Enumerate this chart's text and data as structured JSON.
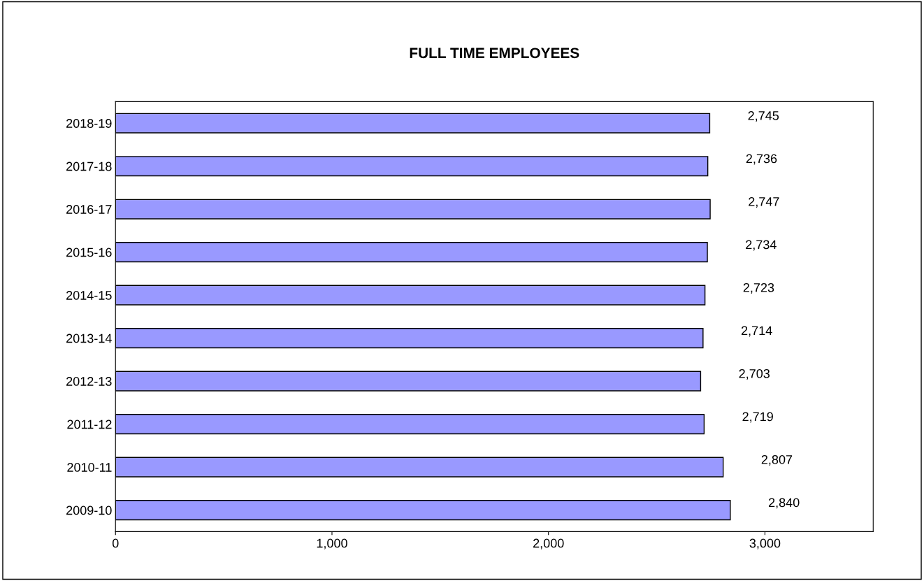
{
  "chart_data": {
    "type": "bar",
    "orientation": "horizontal",
    "title": "FULL TIME EMPLOYEES",
    "categories": [
      "2018-19",
      "2017-18",
      "2016-17",
      "2015-16",
      "2014-15",
      "2013-14",
      "2012-13",
      "2011-12",
      "2010-11",
      "2009-10"
    ],
    "values": [
      2745,
      2736,
      2747,
      2734,
      2723,
      2714,
      2703,
      2719,
      2807,
      2840
    ],
    "value_labels": [
      "2,745",
      "2,736",
      "2,747",
      "2,734",
      "2,723",
      "2,714",
      "2,703",
      "2,719",
      "2,807",
      "2,840"
    ],
    "color": "#9999ff",
    "xlim": [
      0,
      3500
    ],
    "xticks": [
      0,
      {
        "value": 1000,
        "label": "1,000"
      },
      {
        "value": 2000,
        "label": "2,000"
      },
      {
        "value": 3000,
        "label": "3,000"
      }
    ],
    "grid": false,
    "legend": false
  }
}
